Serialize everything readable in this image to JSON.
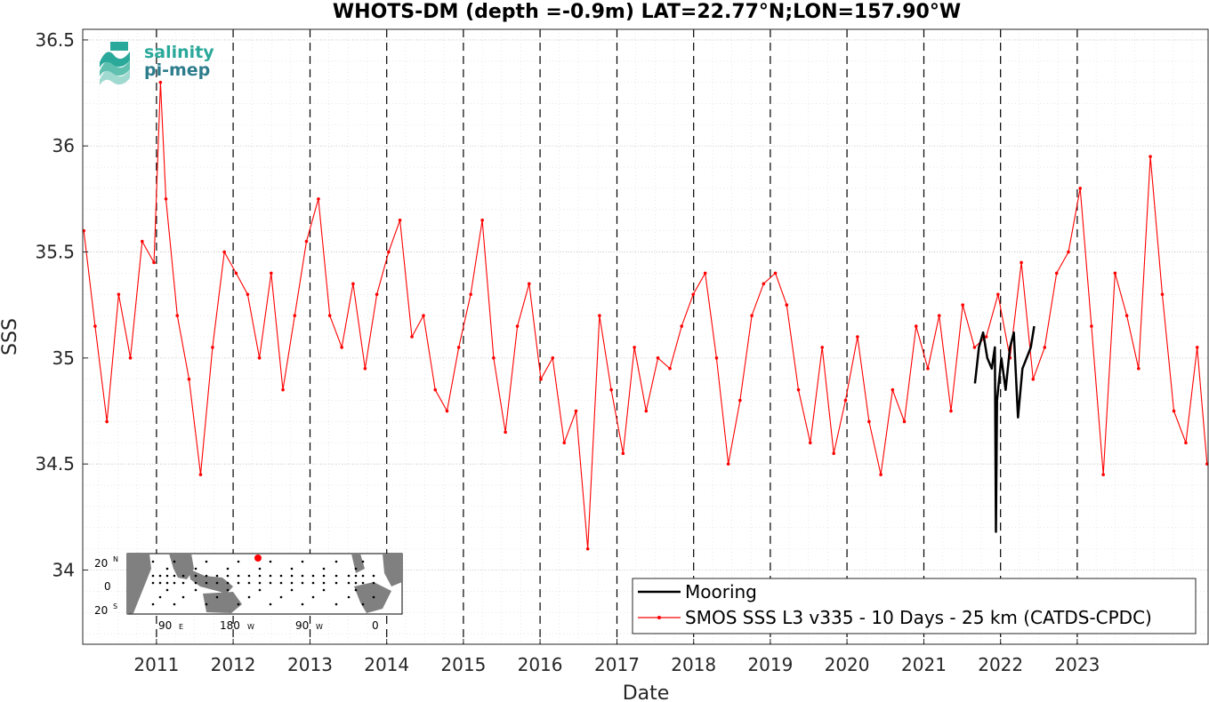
{
  "chart_data": {
    "type": "line",
    "title": "WHOTS-DM (depth =-0.9m) LAT=22.77°N;LON=157.90°W",
    "xlabel": "Date",
    "ylabel": "SSS",
    "xlim": [
      "2010-01-15",
      "2024-09-15"
    ],
    "ylim": [
      33.65,
      36.55
    ],
    "yticks": [
      34,
      34.5,
      35,
      35.5,
      36,
      36.5
    ],
    "yticklabels": [
      "34",
      "34.5",
      "35",
      "35.5",
      "36",
      "36.5"
    ],
    "xticklabels": [
      "2011",
      "2012",
      "2013",
      "2014",
      "2015",
      "2016",
      "2017",
      "2018",
      "2019",
      "2020",
      "2021",
      "2022",
      "2023"
    ],
    "grid": true,
    "legend_position": "bottom-right",
    "year_lines": [
      "2011",
      "2012",
      "2013",
      "2014",
      "2015",
      "2016",
      "2017",
      "2018",
      "2019",
      "2020",
      "2021",
      "2022",
      "2023"
    ],
    "series": [
      {
        "name": "Mooring",
        "color": "#000000",
        "style": "solid",
        "x": [
          "2021-09-01",
          "2021-09-20",
          "2021-10-10",
          "2021-10-30",
          "2021-11-20",
          "2021-12-05",
          "2021-12-10",
          "2021-12-15",
          "2022-01-05",
          "2022-01-25",
          "2022-02-15",
          "2022-03-05",
          "2022-03-25",
          "2022-04-15",
          "2022-05-05",
          "2022-05-25",
          "2022-06-10"
        ],
        "values": [
          34.88,
          35.05,
          35.12,
          35.0,
          34.95,
          35.05,
          34.18,
          34.8,
          35.0,
          34.85,
          35.05,
          35.12,
          34.72,
          34.95,
          35.0,
          35.05,
          35.15
        ]
      },
      {
        "name": "SMOS SSS L3 v335 - 10 Days - 25 km (CATDS-CPDC)",
        "color": "#ff0000",
        "style": "line+dots",
        "x": [
          "2010-01-20",
          "2010-03-15",
          "2010-05-10",
          "2010-07-05",
          "2010-08-30",
          "2010-10-25",
          "2010-12-20",
          "2011-01-20",
          "2011-02-15",
          "2011-04-10",
          "2011-06-05",
          "2011-07-30",
          "2011-09-25",
          "2011-11-20",
          "2012-01-15",
          "2012-03-10",
          "2012-05-05",
          "2012-06-30",
          "2012-08-25",
          "2012-10-20",
          "2012-12-15",
          "2013-02-10",
          "2013-04-05",
          "2013-06-01",
          "2013-07-25",
          "2013-09-20",
          "2013-11-15",
          "2014-01-10",
          "2014-03-05",
          "2014-05-01",
          "2014-06-25",
          "2014-08-20",
          "2014-10-15",
          "2014-12-10",
          "2015-02-05",
          "2015-04-01",
          "2015-05-25",
          "2015-07-20",
          "2015-09-15",
          "2015-11-10",
          "2016-01-05",
          "2016-03-01",
          "2016-04-25",
          "2016-06-20",
          "2016-08-15",
          "2016-10-10",
          "2016-12-05",
          "2017-01-30",
          "2017-03-25",
          "2017-05-20",
          "2017-07-15",
          "2017-09-10",
          "2017-11-05",
          "2017-12-30",
          "2018-02-25",
          "2018-04-20",
          "2018-06-15",
          "2018-08-10",
          "2018-10-05",
          "2018-11-30",
          "2019-01-25",
          "2019-03-20",
          "2019-05-15",
          "2019-07-10",
          "2019-09-05",
          "2019-10-30",
          "2019-12-25",
          "2020-02-20",
          "2020-04-15",
          "2020-06-10",
          "2020-08-05",
          "2020-09-30",
          "2020-11-25",
          "2021-01-20",
          "2021-03-15",
          "2021-05-10",
          "2021-07-05",
          "2021-08-30",
          "2021-10-25",
          "2021-12-20",
          "2022-02-15",
          "2022-04-10",
          "2022-06-05",
          "2022-07-30",
          "2022-09-25",
          "2022-11-20",
          "2023-01-15",
          "2023-03-10",
          "2023-05-05",
          "2023-06-30",
          "2023-08-25",
          "2023-10-20",
          "2023-12-15",
          "2024-02-10",
          "2024-04-05",
          "2024-06-01",
          "2024-07-25",
          "2024-09-10"
        ],
        "values": [
          35.6,
          35.15,
          34.7,
          35.3,
          35.0,
          35.55,
          35.45,
          36.3,
          35.75,
          35.2,
          34.9,
          34.45,
          35.05,
          35.5,
          35.4,
          35.3,
          35.0,
          35.4,
          34.85,
          35.2,
          35.55,
          35.75,
          35.2,
          35.05,
          35.35,
          34.95,
          35.3,
          35.5,
          35.65,
          35.1,
          35.2,
          34.85,
          34.75,
          35.05,
          35.3,
          35.65,
          35.0,
          34.65,
          35.15,
          35.35,
          34.9,
          35.0,
          34.6,
          34.75,
          34.1,
          35.2,
          34.85,
          34.55,
          35.05,
          34.75,
          35.0,
          34.95,
          35.15,
          35.3,
          35.4,
          35.0,
          34.5,
          34.8,
          35.2,
          35.35,
          35.4,
          35.25,
          34.85,
          34.6,
          35.05,
          34.55,
          34.8,
          35.1,
          34.7,
          34.45,
          34.85,
          34.7,
          35.15,
          34.95,
          35.2,
          34.75,
          35.25,
          35.05,
          35.1,
          35.3,
          35.0,
          35.45,
          34.9,
          35.05,
          35.4,
          35.5,
          35.8,
          35.15,
          34.45,
          35.4,
          35.2,
          34.95,
          35.95,
          35.3,
          34.75,
          34.6,
          35.05,
          34.5
        ]
      }
    ]
  },
  "logo": {
    "line1": "salinity",
    "line2": "pi-mep",
    "color1": "#2aa89a",
    "color2": "#2e7d8c"
  },
  "inset_map": {
    "lat_labels": [
      "20",
      "0",
      "20"
    ],
    "lat_hemis": [
      "N",
      "",
      "S"
    ],
    "lon_labels": [
      "90",
      "180",
      "90",
      "0"
    ],
    "lon_hemis": [
      "E",
      "W",
      "W",
      ""
    ],
    "ocean_color": "#ffffff",
    "land_color": "#808080",
    "marker_color": "#ff0000"
  }
}
